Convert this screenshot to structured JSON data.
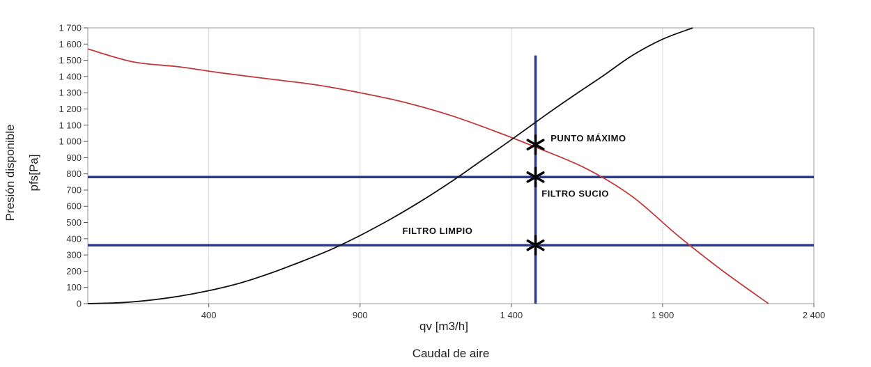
{
  "chart_data": {
    "type": "line",
    "xlabel": "qv [m3/h]",
    "xlabel_secondary": "Caudal de aire",
    "ylabel_line1": "Presión disponible",
    "ylabel_line2": "pfs[Pa]",
    "xlim": [
      0,
      2400
    ],
    "ylim": [
      0,
      1700
    ],
    "x_ticks": [
      400,
      900,
      1400,
      1900,
      2400
    ],
    "x_tick_labels": [
      "400",
      "900",
      "1 400",
      "1 900",
      "2 400"
    ],
    "y_ticks": [
      0,
      100,
      200,
      300,
      400,
      500,
      600,
      700,
      800,
      900,
      1000,
      1100,
      1200,
      1300,
      1400,
      1500,
      1600,
      1700
    ],
    "y_tick_labels": [
      "0",
      "100",
      "200",
      "300",
      "400",
      "500",
      "600",
      "700",
      "800",
      "900",
      "1 000",
      "1 100",
      "1 200",
      "1 300",
      "1 400",
      "1 500",
      "1 600",
      "1 700"
    ],
    "grid": "vertical-only",
    "series": [
      {
        "color": "#c0393b",
        "x": [
          0,
          150,
          300,
          450,
          600,
          750,
          900,
          1050,
          1200,
          1350,
          1500,
          1650,
          1800,
          1950,
          2100,
          2250
        ],
        "y": [
          1570,
          1490,
          1460,
          1420,
          1385,
          1350,
          1300,
          1240,
          1160,
          1060,
          950,
          830,
          660,
          420,
          200,
          0
        ]
      },
      {
        "color": "#111111",
        "x": [
          0,
          100,
          200,
          300,
          400,
          500,
          600,
          700,
          800,
          900,
          1000,
          1100,
          1200,
          1300,
          1400,
          1500,
          1600,
          1700,
          1800,
          1900,
          2000
        ],
        "y": [
          0,
          5,
          20,
          45,
          80,
          125,
          185,
          255,
          330,
          420,
          520,
          630,
          750,
          880,
          1010,
          1145,
          1275,
          1400,
          1530,
          1630,
          1760
        ]
      }
    ],
    "reference_lines": [
      {
        "orientation": "horizontal",
        "value": 780,
        "color": "#2a3a8f"
      },
      {
        "orientation": "horizontal",
        "value": 360,
        "color": "#2a3a8f"
      },
      {
        "orientation": "vertical",
        "value": 1480,
        "color": "#2a3a8f",
        "y_top": 1530
      }
    ],
    "markers": [
      {
        "x": 1480,
        "y": 980
      },
      {
        "x": 1480,
        "y": 780
      },
      {
        "x": 1480,
        "y": 360
      }
    ],
    "annotations": [
      {
        "text": "PUNTO MÁXIMO",
        "x": 1530,
        "y": 1000
      },
      {
        "text": "FILTRO SUCIO",
        "x": 1500,
        "y": 660
      },
      {
        "text": "FILTRO LIMPIO",
        "x": 1040,
        "y": 430
      }
    ]
  }
}
